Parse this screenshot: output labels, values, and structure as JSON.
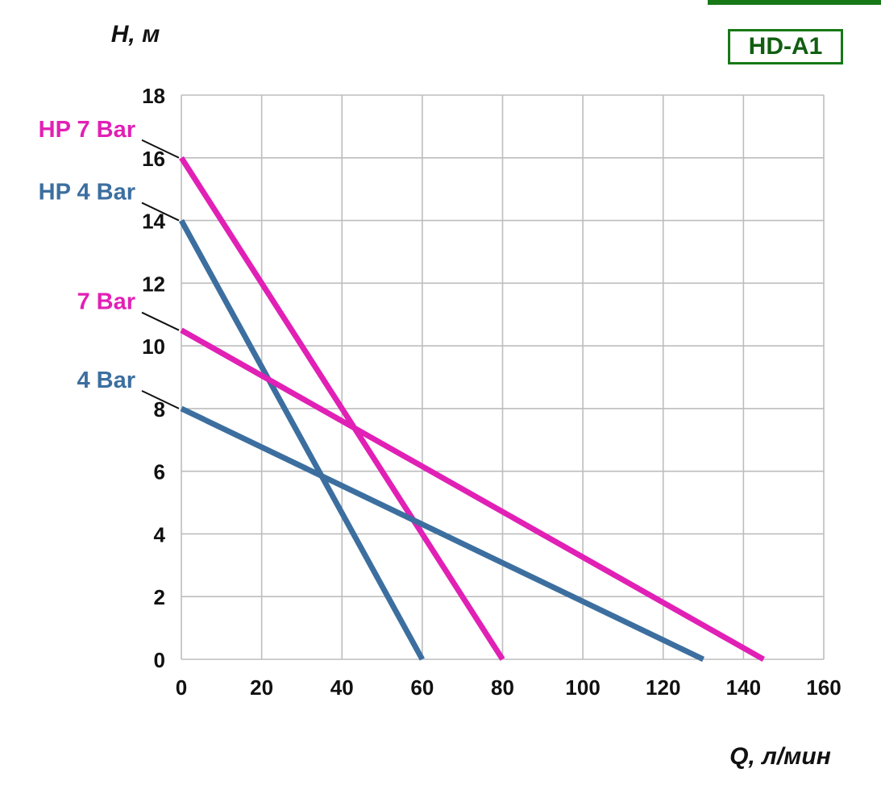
{
  "badge": {
    "label": "HD-A1"
  },
  "chart_data": {
    "type": "line",
    "title": "HD-A1",
    "xlabel": "Q, л/мин",
    "ylabel": "H, м",
    "xlim": [
      0,
      160
    ],
    "ylim": [
      0,
      18
    ],
    "x_ticks": [
      0,
      20,
      40,
      60,
      80,
      100,
      120,
      140,
      160
    ],
    "y_ticks": [
      0,
      2,
      4,
      6,
      8,
      10,
      12,
      14,
      16,
      18
    ],
    "grid": true,
    "legend_position": "left annotations with leader lines",
    "series": [
      {
        "name": "HP 7 Bar",
        "color": "#E120B5",
        "points": [
          [
            0,
            16
          ],
          [
            80,
            0
          ]
        ]
      },
      {
        "name": "HP 4 Bar",
        "color": "#3C6F9F",
        "points": [
          [
            0,
            14
          ],
          [
            60,
            0
          ]
        ]
      },
      {
        "name": "7 Bar",
        "color": "#E120B5",
        "points": [
          [
            0,
            10.5
          ],
          [
            145,
            0
          ]
        ]
      },
      {
        "name": "4 Bar",
        "color": "#3C6F9F",
        "points": [
          [
            0,
            8
          ],
          [
            130,
            0
          ]
        ]
      }
    ],
    "colors": {
      "magenta": "#E120B5",
      "blue": "#3C6F9F",
      "badge_green": "#177817",
      "grid": "#BDBDBD",
      "text": "#111111"
    }
  }
}
